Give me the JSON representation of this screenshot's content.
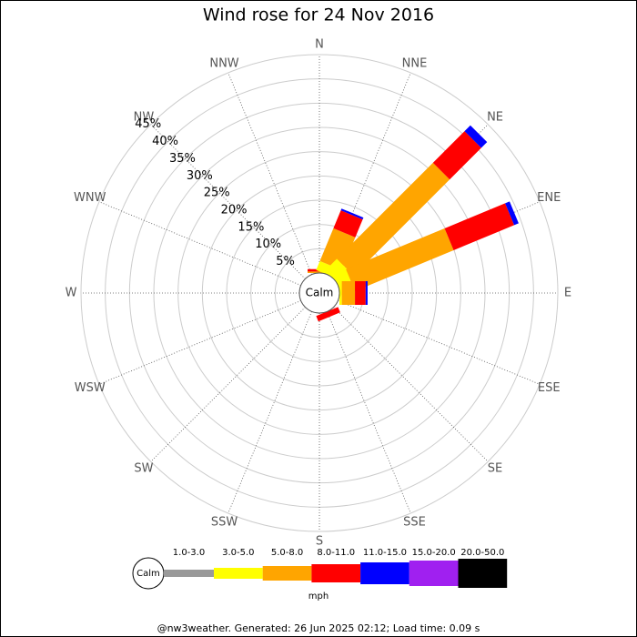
{
  "chart_data": {
    "type": "wind-rose",
    "title": "Wind rose for 24 Nov 2016",
    "directions": [
      "N",
      "NNE",
      "NE",
      "ENE",
      "E",
      "ESE",
      "SE",
      "SSE",
      "S",
      "SSW",
      "SW",
      "WSW",
      "W",
      "WNW",
      "NW",
      "NNW"
    ],
    "series": [
      {
        "name": "1.0-3.0",
        "color": "#999999",
        "values": [
          0,
          0,
          0,
          0,
          0,
          0,
          0,
          0,
          0,
          0,
          0,
          0,
          0,
          0,
          0,
          0
        ]
      },
      {
        "name": "3.0-5.0",
        "color": "#ffff00",
        "values": [
          0,
          2,
          3.4,
          2.8,
          0.5,
          0,
          0,
          0,
          0,
          0,
          0,
          0,
          0,
          0,
          0,
          0
        ]
      },
      {
        "name": "5.0-8.0",
        "color": "#ffa500",
        "values": [
          0.3,
          7.3,
          28,
          22,
          2.7,
          0,
          0,
          0,
          0,
          0,
          0,
          0,
          0,
          0,
          0,
          0
        ]
      },
      {
        "name": "8.0-11.0",
        "color": "#ff0000",
        "values": [
          0.5,
          4,
          9.2,
          13.5,
          2.2,
          0,
          0,
          1.2,
          0,
          0,
          0,
          0,
          0,
          0,
          0,
          0
        ]
      },
      {
        "name": "11.0-15.0",
        "color": "#0000ff",
        "values": [
          0,
          0.4,
          1.7,
          1,
          0.4,
          0,
          0,
          0,
          0,
          0,
          0,
          0,
          0,
          0,
          0,
          0
        ]
      },
      {
        "name": "15.0-20.0",
        "color": "#a020f0",
        "values": [
          0,
          0,
          0,
          0,
          0,
          0,
          0,
          0,
          0,
          0,
          0,
          0,
          0,
          0,
          0,
          0
        ]
      },
      {
        "name": "20.0-50.0",
        "color": "#000000",
        "values": [
          0,
          0,
          0,
          0,
          0,
          0,
          0,
          0,
          0,
          0,
          0,
          0,
          0,
          0,
          0,
          0
        ]
      }
    ],
    "rlim": [
      0,
      45
    ],
    "rticks": [
      {
        "value": 5,
        "label": "5%"
      },
      {
        "value": 10,
        "label": "10%"
      },
      {
        "value": 15,
        "label": "15%"
      },
      {
        "value": 20,
        "label": "20%"
      },
      {
        "value": 25,
        "label": "25%"
      },
      {
        "value": 30,
        "label": "30%"
      },
      {
        "value": 35,
        "label": "35%"
      },
      {
        "value": 40,
        "label": "40%"
      },
      {
        "value": 45,
        "label": "45%"
      }
    ],
    "calm_label": "Calm",
    "unit": "mph",
    "footer": "@nw3weather. Generated: 26 Jun 2025 02:12; Load time: 0.09 s"
  }
}
